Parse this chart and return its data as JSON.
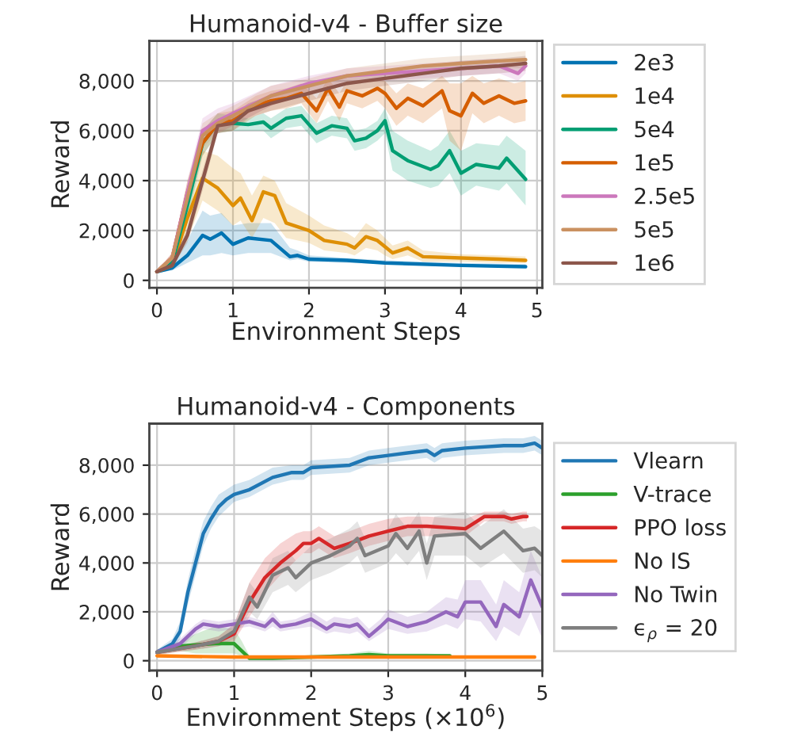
{
  "chart_data": [
    {
      "type": "line",
      "title": "Humanoid-v4 - Buffer size",
      "xlabel": "Environment Steps",
      "ylabel": "Reward",
      "xlim": [
        -0.1,
        5.07
      ],
      "ylim": [
        -300,
        9600
      ],
      "xticks": [
        0,
        1,
        2,
        3,
        4,
        5
      ],
      "yticks": [
        {
          "value": 0,
          "label": "0"
        },
        {
          "value": 2000,
          "label": "2,000"
        },
        {
          "value": 4000,
          "label": "4,000"
        },
        {
          "value": 6000,
          "label": "6,000"
        },
        {
          "value": 8000,
          "label": "8,000"
        }
      ],
      "grid": true,
      "legend": "right",
      "series": [
        {
          "name": "2e3",
          "color": "#0173b2",
          "x": [
            0,
            0.2,
            0.4,
            0.6,
            0.7,
            0.85,
            1.0,
            1.2,
            1.5,
            1.75,
            1.85,
            2.0,
            2.5,
            3,
            4,
            4.85
          ],
          "values": [
            350,
            500,
            1000,
            1800,
            1650,
            1900,
            1450,
            1700,
            1600,
            950,
            1000,
            850,
            800,
            700,
            600,
            550
          ],
          "lower": [
            300,
            400,
            700,
            1000,
            1000,
            1100,
            1000,
            1100,
            1100,
            800,
            850,
            750,
            700,
            650,
            550,
            500
          ],
          "upper": [
            400,
            650,
            1600,
            2800,
            2600,
            2700,
            2200,
            2300,
            2300,
            1300,
            1200,
            1000,
            900,
            800,
            700,
            650
          ]
        },
        {
          "name": "1e4",
          "color": "#de8f05",
          "x": [
            0,
            0.2,
            0.4,
            0.6,
            0.8,
            1.0,
            1.1,
            1.25,
            1.4,
            1.55,
            1.7,
            2.0,
            2.2,
            2.5,
            2.6,
            2.75,
            2.9,
            3.0,
            3.1,
            3.3,
            3.5,
            4,
            4.5,
            4.85
          ],
          "values": [
            350,
            600,
            2500,
            4100,
            3700,
            3000,
            3300,
            2400,
            3550,
            3400,
            2300,
            2000,
            1600,
            1450,
            1300,
            1750,
            1600,
            1350,
            1100,
            1300,
            950,
            900,
            850,
            800
          ],
          "lower": [
            300,
            450,
            1600,
            3200,
            2800,
            2200,
            2400,
            1700,
            2500,
            2300,
            1700,
            1500,
            1200,
            1100,
            1000,
            1300,
            1200,
            1000,
            850,
            1000,
            750,
            750,
            700,
            700
          ],
          "upper": [
            400,
            800,
            3800,
            5200,
            5000,
            4500,
            4300,
            3400,
            4200,
            4000,
            3100,
            2600,
            2200,
            1900,
            1700,
            2300,
            2000,
            1700,
            1400,
            1600,
            1200,
            1050,
            1000,
            950
          ]
        },
        {
          "name": "5e4",
          "color": "#029e73",
          "x": [
            0,
            0.2,
            0.4,
            0.6,
            0.8,
            1.0,
            1.2,
            1.4,
            1.5,
            1.7,
            1.9,
            2.1,
            2.3,
            2.5,
            2.6,
            2.75,
            2.9,
            3.0,
            3.1,
            3.3,
            3.6,
            3.7,
            3.85,
            4.0,
            4.2,
            4.5,
            4.6,
            4.85
          ],
          "values": [
            350,
            700,
            3000,
            5500,
            6300,
            6300,
            6250,
            6350,
            6100,
            6500,
            6600,
            5900,
            6200,
            6100,
            5600,
            5700,
            6000,
            6400,
            5200,
            4800,
            4450,
            4600,
            5200,
            4300,
            4650,
            4500,
            4900,
            4050
          ],
          "lower": [
            300,
            550,
            2400,
            5000,
            5900,
            6000,
            6000,
            6000,
            5700,
            6100,
            6200,
            5500,
            5800,
            5700,
            5200,
            5300,
            5600,
            5900,
            4400,
            4000,
            3700,
            3800,
            4300,
            3400,
            3800,
            3600,
            3900,
            3000
          ],
          "upper": [
            400,
            850,
            3600,
            6000,
            6700,
            6600,
            6500,
            6700,
            6500,
            6900,
            7000,
            6300,
            6600,
            6500,
            6000,
            6100,
            6400,
            6900,
            6000,
            5600,
            5200,
            5400,
            6000,
            5200,
            5500,
            5400,
            5800,
            5200
          ]
        },
        {
          "name": "1e5",
          "color": "#d55e00",
          "x": [
            0,
            0.2,
            0.4,
            0.6,
            0.8,
            1.0,
            1.3,
            1.5,
            1.7,
            1.9,
            2.1,
            2.25,
            2.4,
            2.5,
            2.7,
            2.9,
            3.0,
            3.15,
            3.3,
            3.5,
            3.75,
            3.85,
            4.0,
            4.15,
            4.3,
            4.5,
            4.7,
            4.85
          ],
          "values": [
            350,
            900,
            3500,
            5500,
            6300,
            6400,
            7000,
            7200,
            7300,
            7500,
            6800,
            7700,
            6950,
            7600,
            7400,
            7700,
            7500,
            6900,
            7300,
            7000,
            7600,
            6800,
            6600,
            7500,
            7100,
            7400,
            7100,
            7200
          ],
          "lower": [
            300,
            700,
            3000,
            5000,
            5900,
            6000,
            6600,
            6800,
            6900,
            7100,
            6300,
            7200,
            6400,
            7100,
            6900,
            7200,
            6900,
            6200,
            6600,
            6300,
            6900,
            5600,
            5200,
            6700,
            6300,
            6600,
            6300,
            6400
          ],
          "upper": [
            400,
            1100,
            4000,
            6000,
            6700,
            6800,
            7400,
            7600,
            7700,
            7900,
            7300,
            8100,
            7500,
            8000,
            7900,
            8100,
            8000,
            7500,
            7900,
            7700,
            8200,
            7900,
            7900,
            8200,
            7900,
            8100,
            7900,
            8000
          ]
        },
        {
          "name": "2.5e5",
          "color": "#cc78bc",
          "x": [
            0,
            0.2,
            0.4,
            0.6,
            0.8,
            1.0,
            1.5,
            2,
            2.5,
            3,
            3.5,
            4,
            4.5,
            4.75,
            4.85
          ],
          "values": [
            350,
            900,
            3500,
            6000,
            6400,
            6700,
            7400,
            7900,
            8200,
            8300,
            8400,
            8500,
            8600,
            8300,
            8600
          ],
          "lower": [
            300,
            700,
            3000,
            5500,
            5900,
            6200,
            7000,
            7600,
            7900,
            8000,
            8100,
            8200,
            8300,
            8000,
            8300
          ],
          "upper": [
            400,
            1100,
            4000,
            6500,
            6900,
            7100,
            7800,
            8200,
            8500,
            8600,
            8700,
            8800,
            8900,
            8600,
            8900
          ]
        },
        {
          "name": "5e5",
          "color": "#ca9161",
          "x": [
            0,
            0.2,
            0.4,
            0.6,
            0.8,
            1.0,
            1.5,
            2,
            2.5,
            3,
            3.5,
            4,
            4.5,
            4.85
          ],
          "values": [
            350,
            900,
            3300,
            5800,
            6300,
            6600,
            7400,
            7800,
            8200,
            8400,
            8600,
            8700,
            8800,
            8850
          ],
          "lower": [
            300,
            700,
            2700,
            5300,
            5900,
            6200,
            7000,
            7500,
            7900,
            8100,
            8300,
            8400,
            8500,
            8500
          ],
          "upper": [
            400,
            1100,
            3900,
            6300,
            6700,
            7000,
            7800,
            8100,
            8500,
            8700,
            8900,
            9000,
            9100,
            9200
          ]
        },
        {
          "name": "1e6",
          "color": "#8c564b",
          "x": [
            0,
            0.2,
            0.4,
            0.6,
            0.8,
            1.0,
            1.2,
            1.5,
            2,
            2.5,
            3,
            3.5,
            4,
            4.5,
            4.85
          ],
          "values": [
            350,
            600,
            1800,
            4000,
            6200,
            6300,
            6800,
            7100,
            7500,
            7900,
            8100,
            8300,
            8500,
            8600,
            8700
          ],
          "lower": [
            300,
            500,
            1500,
            3600,
            5900,
            6000,
            6500,
            6800,
            7200,
            7600,
            7800,
            8000,
            8200,
            8300,
            8400
          ],
          "upper": [
            400,
            700,
            2100,
            4400,
            6500,
            6600,
            7100,
            7400,
            7800,
            8200,
            8400,
            8600,
            8800,
            8900,
            9000
          ]
        }
      ]
    },
    {
      "type": "line",
      "title": "Humanoid-v4 - Components",
      "xlabel": "Environment Steps (×10$^{6}$)",
      "ylabel": "Reward",
      "xlim": [
        -0.1,
        5.0
      ],
      "ylim": [
        -400,
        9700
      ],
      "xticks": [
        0,
        1,
        2,
        3,
        4,
        5
      ],
      "yticks": [
        {
          "value": 0,
          "label": "0"
        },
        {
          "value": 2000,
          "label": "2,000"
        },
        {
          "value": 4000,
          "label": "4,000"
        },
        {
          "value": 6000,
          "label": "6,000"
        },
        {
          "value": 8000,
          "label": "8,000"
        }
      ],
      "grid": true,
      "legend": "right",
      "series": [
        {
          "name": "Vlearn",
          "color": "#1f77b4",
          "x": [
            0,
            0.2,
            0.3,
            0.4,
            0.5,
            0.6,
            0.7,
            0.8,
            0.9,
            1.0,
            1.2,
            1.5,
            1.75,
            1.9,
            2.0,
            2.5,
            2.75,
            3,
            3.5,
            3.6,
            3.7,
            4,
            4.5,
            4.75,
            4.9,
            5
          ],
          "values": [
            350,
            700,
            1200,
            2800,
            4000,
            5200,
            5800,
            6300,
            6600,
            6800,
            7000,
            7500,
            7700,
            7700,
            7900,
            8000,
            8300,
            8400,
            8600,
            8400,
            8600,
            8700,
            8800,
            8800,
            8900,
            8700
          ],
          "lower": [
            250,
            500,
            900,
            2300,
            3500,
            4700,
            5400,
            5900,
            6200,
            6500,
            6700,
            7200,
            7400,
            7400,
            7600,
            7700,
            8000,
            8100,
            8300,
            8100,
            8300,
            8400,
            8500,
            8500,
            8600,
            8400
          ],
          "upper": [
            450,
            900,
            1600,
            3300,
            4600,
            5700,
            6300,
            6800,
            7000,
            7200,
            7400,
            7900,
            8000,
            8000,
            8200,
            8300,
            8600,
            8700,
            8900,
            8700,
            8900,
            9000,
            9100,
            9100,
            9200,
            9000
          ]
        },
        {
          "name": "V-trace",
          "color": "#2ca02c",
          "x": [
            0,
            0.3,
            0.5,
            0.75,
            1.0,
            1.1,
            1.2,
            1.5,
            2,
            2.5,
            2.75,
            3,
            3.5,
            3.8
          ],
          "values": [
            350,
            600,
            650,
            700,
            700,
            400,
            100,
            100,
            150,
            200,
            250,
            200,
            200,
            200
          ],
          "lower": [
            250,
            400,
            300,
            300,
            300,
            200,
            50,
            50,
            100,
            100,
            150,
            150,
            150,
            150
          ],
          "upper": [
            450,
            800,
            1100,
            1400,
            1300,
            800,
            200,
            150,
            200,
            300,
            400,
            300,
            300,
            250
          ]
        },
        {
          "name": "PPO loss",
          "color": "#d62728",
          "x": [
            0,
            0.5,
            0.8,
            1.0,
            1.2,
            1.4,
            1.6,
            1.8,
            1.9,
            2,
            2.1,
            2.3,
            2.5,
            2.75,
            3,
            3.25,
            3.5,
            4,
            4.25,
            4.5,
            4.6,
            4.75,
            4.8
          ],
          "values": [
            350,
            600,
            800,
            1100,
            2400,
            3400,
            4000,
            4500,
            4800,
            4800,
            5000,
            4600,
            4800,
            5100,
            5300,
            5500,
            5500,
            5400,
            5900,
            5900,
            5800,
            5900,
            5900
          ],
          "lower": [
            250,
            450,
            600,
            800,
            1800,
            2800,
            3500,
            4100,
            4400,
            4400,
            4600,
            4200,
            4400,
            4700,
            4900,
            5100,
            5100,
            5100,
            5700,
            5700,
            5600,
            5700,
            5700
          ],
          "upper": [
            450,
            750,
            1000,
            1500,
            3200,
            4200,
            4800,
            5200,
            5300,
            5300,
            5500,
            5100,
            5300,
            5600,
            5800,
            5900,
            5900,
            5800,
            6100,
            6100,
            6000,
            6100,
            6100
          ]
        },
        {
          "name": "No IS",
          "color": "#ff7f0e",
          "x": [
            0,
            1,
            2,
            3,
            4,
            4.9
          ],
          "values": [
            200,
            150,
            150,
            150,
            150,
            150
          ]
        },
        {
          "name": "No Twin",
          "color": "#9467bd",
          "x": [
            0,
            0.3,
            0.5,
            0.6,
            0.8,
            1,
            1.2,
            1.4,
            1.5,
            1.6,
            1.8,
            2,
            2.2,
            2.3,
            2.5,
            2.6,
            2.75,
            2.9,
            3,
            3.25,
            3.5,
            3.75,
            3.9,
            4,
            4.2,
            4.4,
            4.5,
            4.7,
            4.85,
            5
          ],
          "values": [
            350,
            700,
            1300,
            1500,
            1400,
            1500,
            1600,
            1400,
            1700,
            1400,
            1500,
            1700,
            1300,
            1500,
            1400,
            1500,
            1000,
            1400,
            1700,
            1400,
            1600,
            2000,
            1800,
            2400,
            2400,
            1400,
            2300,
            1800,
            3300,
            2200
          ],
          "lower": [
            250,
            500,
            1100,
            1300,
            1200,
            1300,
            1400,
            1200,
            1400,
            1200,
            1300,
            1400,
            1100,
            1200,
            1100,
            1200,
            800,
            1100,
            1300,
            1100,
            1200,
            1500,
            1300,
            1700,
            1600,
            800,
            1400,
            1000,
            2000,
            900
          ],
          "upper": [
            450,
            900,
            1500,
            1700,
            1600,
            1700,
            1800,
            1600,
            2000,
            1600,
            1700,
            2000,
            1600,
            1800,
            1700,
            1800,
            1300,
            1700,
            2100,
            1800,
            2000,
            2600,
            2500,
            3300,
            3300,
            2300,
            3300,
            2800,
            4500,
            3400
          ]
        },
        {
          "name": "ϵ$_{ρ}$ = 20",
          "color": "#7f7f7f",
          "x": [
            0,
            0.5,
            0.8,
            1,
            1.2,
            1.3,
            1.5,
            1.7,
            1.8,
            2,
            2.25,
            2.5,
            2.6,
            2.7,
            3,
            3.1,
            3.25,
            3.4,
            3.5,
            3.6,
            4,
            4.2,
            4.5,
            4.75,
            4.9,
            5
          ],
          "values": [
            350,
            600,
            800,
            1200,
            2600,
            2200,
            3500,
            3800,
            3400,
            4000,
            4300,
            4700,
            5000,
            4300,
            4700,
            5200,
            4600,
            5300,
            4000,
            5100,
            5200,
            4600,
            5300,
            4500,
            4600,
            4300
          ],
          "lower": [
            250,
            450,
            600,
            900,
            2000,
            1700,
            2800,
            3100,
            2800,
            3300,
            3600,
            4000,
            4300,
            3600,
            4000,
            4400,
            3900,
            4500,
            3300,
            4300,
            4300,
            3800,
            4400,
            3600,
            3700,
            3400
          ],
          "upper": [
            450,
            750,
            1000,
            1500,
            3200,
            2800,
            4200,
            4500,
            4100,
            4700,
            5000,
            5400,
            5700,
            5000,
            5400,
            6000,
            5400,
            6100,
            4800,
            5900,
            6100,
            5500,
            6200,
            5400,
            5500,
            5300
          ]
        }
      ]
    }
  ]
}
